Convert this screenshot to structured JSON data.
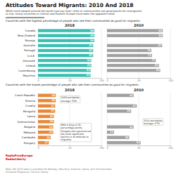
{
  "title": "Attitudes Toward Migrants: 2010 And 2018",
  "subtitle": "While more people around the world now say their cities or communities are good places for immigrants\nto live, many countries in Central and Eastern Europe have seen the opposite trend.",
  "footer": [
    "RadioFreeEurope",
    "RadioLiberty"
  ],
  "note": "Note: No 2010 data is available for Norway, Mauritius, Estonia, Latvia, and Turkmenistan\nAntipova Polyptova | Source: Gallup",
  "chart_data": [
    {
      "type": "bar",
      "orientation": "horizontal",
      "title": "Countries with the highest percentage of people who see their communities as good for migrants:",
      "categories": [
        "Canada",
        "New Zealand",
        "Norway",
        "Australia",
        "Portugal",
        "U.A.E.",
        "Denmark",
        "Ireland",
        "Luxembourg",
        "Mauritius"
      ],
      "series": [
        {
          "name": "2018",
          "color": "#3cbfb2",
          "values": [
            89,
            89,
            89,
            87,
            87,
            87,
            84,
            84,
            83,
            83
          ]
        },
        {
          "name": "2010",
          "color": "#a0a0a0",
          "values": [
            88,
            88,
            null,
            87,
            70,
            71,
            77,
            82,
            84,
            null
          ]
        }
      ],
      "xlim": [
        0,
        100
      ],
      "xticks": [
        0,
        50,
        100
      ],
      "grid": true,
      "data_labels": true
    },
    {
      "type": "bar",
      "orientation": "horizontal",
      "title": "Countries with the lowest percentage of people who see their communities as good for migrants:",
      "categories": [
        "Czech Republic",
        "Estonia",
        "Croatia",
        "Mongolia",
        "Latvia",
        "Turkmenistan",
        "Bulgaria",
        "Malaysia",
        "Cambodia",
        "Hungary"
      ],
      "series": [
        {
          "name": "2018",
          "color": "#e8883a",
          "values": [
            28,
            28,
            27,
            27,
            25,
            25,
            24,
            24,
            20,
            17
          ]
        },
        {
          "name": "2010",
          "color": "#a0a0a0",
          "values": [
            42,
            null,
            47,
            38,
            null,
            null,
            42,
            11,
            35,
            53
          ]
        }
      ],
      "xlim": [
        0,
        100
      ],
      "xticks": [
        0,
        50,
        100
      ],
      "grid": true,
      "data_labels": true,
      "annotations": [
        "2018 worldwide\naverage: 54%",
        "With a drop of 36\npercentage points,\nHungary has experienced\nthe most significant\ndecline in its attitude to\nmigrants.",
        "2010 worldwide\naverage: 67%"
      ]
    }
  ]
}
